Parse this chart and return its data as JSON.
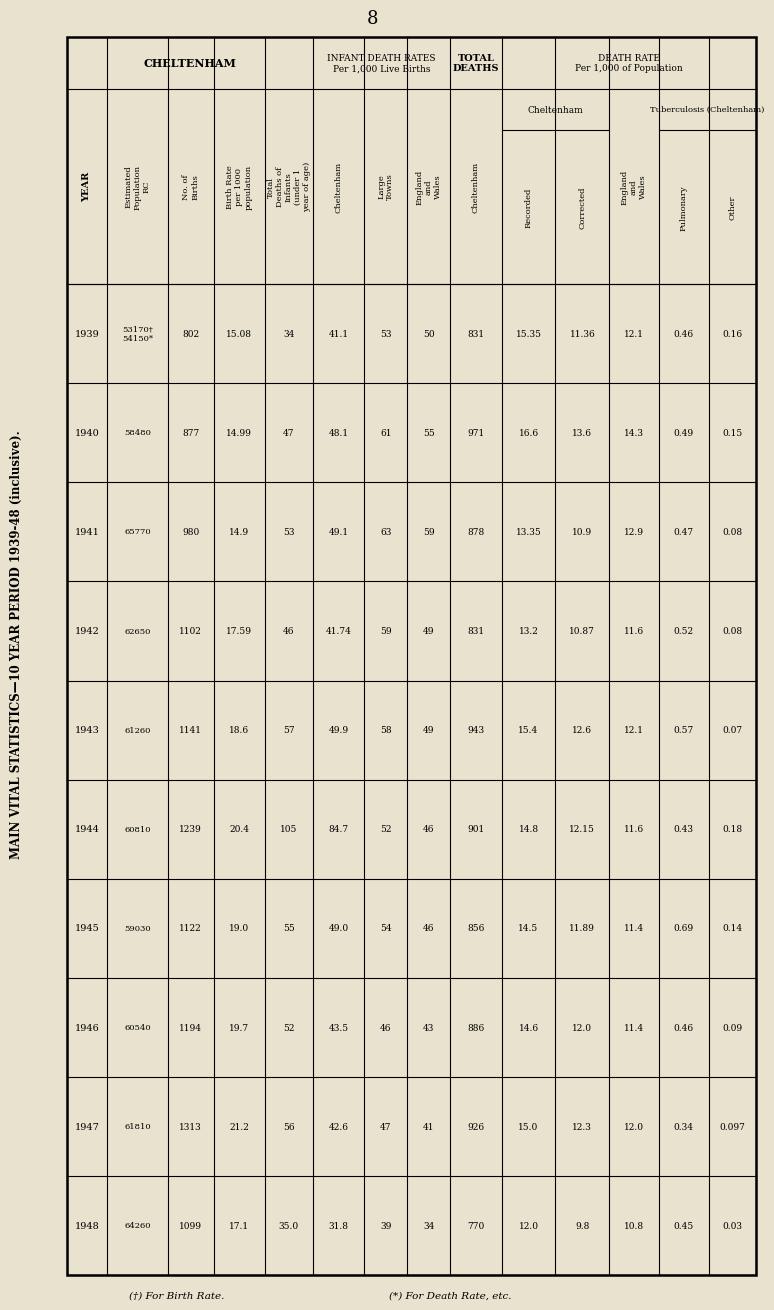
{
  "title": "MAIN VITAL STATISTICS—10 YEAR PERIOD 1939-48 (inclusive).",
  "page_num": "8",
  "footnote1": "(†) For Birth Rate.",
  "footnote2": "(*) For Death Rate, etc.",
  "bg_color": "#e8e2ce",
  "years": [
    "1939",
    "1940",
    "1941",
    "1942",
    "1943",
    "1944",
    "1945",
    "1946",
    "1947",
    "1948"
  ],
  "est_pop": [
    "53170†\n54150*",
    "58480",
    "65770",
    "62650",
    "61260",
    "60810",
    "59030",
    "60540",
    "61810",
    "64260"
  ],
  "no_births": [
    "802",
    "877",
    "980",
    "1102",
    "1141",
    "1239",
    "1122",
    "1194",
    "1313",
    "1099"
  ],
  "birth_rate": [
    "15.08",
    "14.99",
    "14.9",
    "17.59",
    "18.6",
    "20.4",
    "19.0",
    "19.7",
    "21.2",
    "17.1"
  ],
  "tot_inf_deaths": [
    "34",
    "47",
    "53",
    "46",
    "57",
    "105",
    "55",
    "52",
    "56",
    "35.0"
  ],
  "idr_chelt": [
    "41.1",
    "48.1",
    "49.1",
    "41.74",
    "49.9",
    "84.7",
    "49.0",
    "43.5",
    "42.6",
    "31.8"
  ],
  "idr_large": [
    "53",
    "61",
    "63",
    "59",
    "58",
    "52",
    "54",
    "46",
    "47",
    "39"
  ],
  "idr_ew": [
    "50",
    "55",
    "59",
    "49",
    "49",
    "46",
    "46",
    "43",
    "41",
    "34"
  ],
  "tot_deaths": [
    "831",
    "971",
    "878",
    "831",
    "943",
    "901",
    "856",
    "886",
    "926",
    "770"
  ],
  "dr_recorded": [
    "15.35",
    "16.6",
    "13.35",
    "13.2",
    "15.4",
    "14.8",
    "14.5",
    "14.6",
    "15.0",
    "12.0"
  ],
  "dr_corrected": [
    "11.36",
    "13.6",
    "10.9",
    "10.87",
    "12.6",
    "12.15",
    "11.89",
    "12.0",
    "12.3",
    "9.8"
  ],
  "dr_ew": [
    "12.1",
    "14.3",
    "12.9",
    "11.6",
    "12.1",
    "11.6",
    "11.4",
    "11.4",
    "12.0",
    "10.8"
  ],
  "tb_pulm": [
    "0.46",
    "0.49",
    "0.47",
    "0.52",
    "0.57",
    "0.43",
    "0.69",
    "0.46",
    "0.34",
    "0.45"
  ],
  "tb_other": [
    "0.16",
    "0.15",
    "0.08",
    "0.08",
    "0.07",
    "0.18",
    "0.14",
    "0.09",
    "0.097",
    "0.03"
  ]
}
